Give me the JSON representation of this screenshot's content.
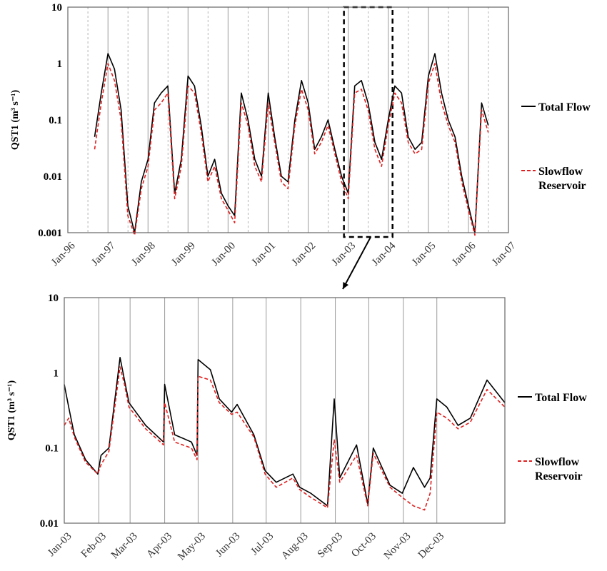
{
  "chart_data": [
    {
      "type": "line",
      "ylabel": "QST1 (m³ s⁻¹)",
      "yscale": "log",
      "ylim": [
        0.001,
        10
      ],
      "yticks": [
        "0.001",
        "0.01",
        "0.1",
        "1",
        "10"
      ],
      "xlim": [
        "1996-01",
        "2007-01"
      ],
      "xticks": [
        "Jan-96",
        "Jan-97",
        "Jan-98",
        "Jan-99",
        "Jan-00",
        "Jan-01",
        "Jan-02",
        "Jan-03",
        "Jan-04",
        "Jan-05",
        "Jan-06",
        "Jan-07"
      ],
      "legend_position": "right",
      "annotation": "dashed box marks Jan-03 to Jan-04, arrow pointing to lower panel",
      "highlight_range": [
        "2003-01",
        "2004-01"
      ],
      "x_dates": [
        "1996-09",
        "1996-11",
        "1997-01",
        "1997-03",
        "1997-05",
        "1997-07",
        "1997-09",
        "1997-11",
        "1998-01",
        "1998-03",
        "1998-05",
        "1998-07",
        "1998-09",
        "1998-11",
        "1999-01",
        "1999-03",
        "1999-05",
        "1999-07",
        "1999-09",
        "1999-11",
        "2000-01",
        "2000-03",
        "2000-05",
        "2000-07",
        "2000-09",
        "2000-11",
        "2001-01",
        "2001-03",
        "2001-05",
        "2001-07",
        "2001-09",
        "2001-11",
        "2002-01",
        "2002-03",
        "2002-05",
        "2002-07",
        "2002-09",
        "2002-11",
        "2003-01",
        "2003-03",
        "2003-05",
        "2003-07",
        "2003-09",
        "2003-11",
        "2004-01",
        "2004-03",
        "2004-05",
        "2004-07",
        "2004-09",
        "2004-11",
        "2005-01",
        "2005-03",
        "2005-05",
        "2005-07",
        "2005-09",
        "2005-11",
        "2006-01",
        "2006-03",
        "2006-05",
        "2006-07"
      ],
      "series": [
        {
          "name": "Total Flow",
          "color": "#000000",
          "dash": "solid",
          "values": [
            0.05,
            0.3,
            1.5,
            0.8,
            0.15,
            0.003,
            0.001,
            0.008,
            0.02,
            0.2,
            0.3,
            0.4,
            0.005,
            0.02,
            0.6,
            0.4,
            0.08,
            0.01,
            0.02,
            0.005,
            0.003,
            0.002,
            0.3,
            0.1,
            0.02,
            0.01,
            0.3,
            0.05,
            0.01,
            0.008,
            0.1,
            0.5,
            0.2,
            0.03,
            0.05,
            0.1,
            0.03,
            0.01,
            0.005,
            0.4,
            0.5,
            0.2,
            0.04,
            0.02,
            0.1,
            0.4,
            0.3,
            0.05,
            0.03,
            0.04,
            0.6,
            1.5,
            0.3,
            0.1,
            0.05,
            0.01,
            0.003,
            0.001,
            0.2,
            0.08
          ]
        },
        {
          "name": "Slowflow Reservoir",
          "color": "#e02020",
          "dash": "dashed",
          "values": [
            0.03,
            0.2,
            1.0,
            0.5,
            0.1,
            0.002,
            0.0009,
            0.006,
            0.015,
            0.15,
            0.2,
            0.3,
            0.004,
            0.015,
            0.4,
            0.3,
            0.06,
            0.008,
            0.015,
            0.004,
            0.0025,
            0.0015,
            0.2,
            0.08,
            0.015,
            0.008,
            0.2,
            0.04,
            0.008,
            0.006,
            0.08,
            0.35,
            0.15,
            0.025,
            0.04,
            0.08,
            0.025,
            0.008,
            0.004,
            0.3,
            0.35,
            0.15,
            0.03,
            0.015,
            0.08,
            0.3,
            0.2,
            0.04,
            0.025,
            0.03,
            0.45,
            1.0,
            0.2,
            0.08,
            0.04,
            0.008,
            0.0025,
            0.0009,
            0.15,
            0.06
          ]
        }
      ]
    },
    {
      "type": "line",
      "ylabel": "QST1 (m³ s⁻¹)",
      "yscale": "log",
      "ylim": [
        0.01,
        10
      ],
      "yticks": [
        "0.01",
        "0.1",
        "1",
        "10"
      ],
      "xlim": [
        "2003-01-01",
        "2004-01-31"
      ],
      "xticks": [
        "Jan-03",
        "Feb-03",
        "Mar-03",
        "Apr-03",
        "May-03",
        "Jun-03",
        "Jul-03",
        "Aug-03",
        "Sep-03",
        "Oct-03",
        "Nov-03",
        "Dec-03"
      ],
      "legend_position": "right",
      "x_dates": [
        "2003-01-01",
        "2003-01-05",
        "2003-01-10",
        "2003-01-20",
        "2003-01-31",
        "2003-02-03",
        "2003-02-10",
        "2003-02-20",
        "2003-02-24",
        "2003-02-28",
        "2003-03-15",
        "2003-03-31",
        "2003-04-01",
        "2003-04-10",
        "2003-04-25",
        "2003-04-30",
        "2003-05-01",
        "2003-05-12",
        "2003-05-20",
        "2003-05-31",
        "2003-06-05",
        "2003-06-20",
        "2003-06-30",
        "2003-07-10",
        "2003-07-25",
        "2003-07-31",
        "2003-08-10",
        "2003-08-25",
        "2003-08-31",
        "2003-09-05",
        "2003-09-20",
        "2003-09-30",
        "2003-10-05",
        "2003-10-20",
        "2003-10-31",
        "2003-11-10",
        "2003-11-20",
        "2003-11-25",
        "2003-12-01",
        "2003-12-10",
        "2003-12-20",
        "2003-12-31",
        "2004-01-15",
        "2004-01-31"
      ],
      "series": [
        {
          "name": "Total Flow",
          "color": "#000000",
          "dash": "solid",
          "values": [
            0.7,
            0.35,
            0.15,
            0.07,
            0.045,
            0.08,
            0.1,
            1.6,
            0.8,
            0.4,
            0.2,
            0.12,
            0.7,
            0.15,
            0.12,
            0.08,
            1.5,
            1.1,
            0.45,
            0.3,
            0.38,
            0.15,
            0.05,
            0.035,
            0.045,
            0.03,
            0.025,
            0.017,
            0.45,
            0.04,
            0.11,
            0.018,
            0.1,
            0.032,
            0.025,
            0.055,
            0.03,
            0.04,
            0.45,
            0.35,
            0.2,
            0.25,
            0.8,
            0.4
          ]
        },
        {
          "name": "Slowflow Reservoir",
          "color": "#e02020",
          "dash": "dashed",
          "values": [
            0.2,
            0.25,
            0.14,
            0.065,
            0.045,
            0.06,
            0.09,
            1.2,
            0.7,
            0.35,
            0.18,
            0.11,
            0.4,
            0.12,
            0.1,
            0.07,
            0.9,
            0.8,
            0.4,
            0.28,
            0.3,
            0.14,
            0.045,
            0.03,
            0.04,
            0.028,
            0.022,
            0.016,
            0.13,
            0.035,
            0.08,
            0.017,
            0.085,
            0.03,
            0.022,
            0.017,
            0.015,
            0.025,
            0.3,
            0.25,
            0.18,
            0.22,
            0.6,
            0.35
          ]
        }
      ]
    }
  ]
}
